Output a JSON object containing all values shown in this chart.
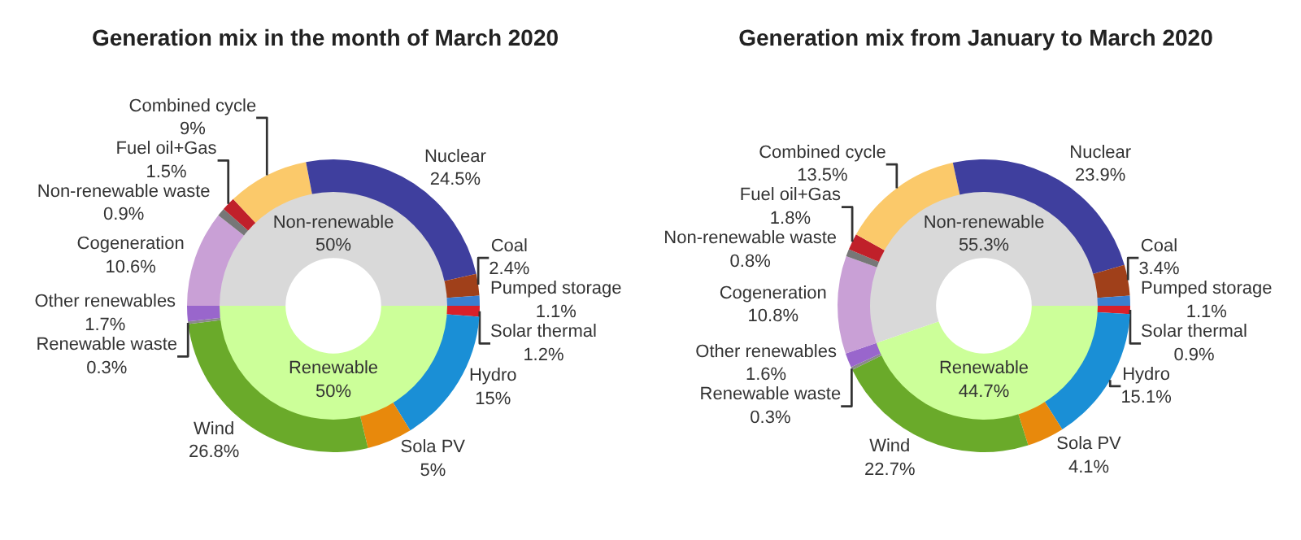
{
  "chart_data": [
    {
      "type": "donut",
      "title": "Generation mix in the month of March 2020",
      "categories": [
        "Solar thermal",
        "Hydro",
        "Sola PV",
        "Wind",
        "Renewable waste",
        "Other renewables",
        "Cogeneration",
        "Non-renewable waste",
        "Fuel oil+Gas",
        "Combined cycle",
        "Nuclear",
        "Coal",
        "Pumped storage"
      ],
      "values": [
        1.2,
        15,
        5,
        26.8,
        0.3,
        1.7,
        10.6,
        0.9,
        1.5,
        9,
        24.5,
        2.4,
        1.1
      ],
      "value_labels": [
        "1.2%",
        "15%",
        "5%",
        "26.8%",
        "0.3%",
        "1.7%",
        "10.6%",
        "0.9%",
        "1.5%",
        "9%",
        "24.5%",
        "2.4%",
        "1.1%"
      ],
      "colors": [
        "#d9202a",
        "#1a8fd6",
        "#e8890c",
        "#6aaa2a",
        "#8a8a8a",
        "#9966cc",
        "#c9a0d6",
        "#777777",
        "#c0202a",
        "#fbc96a",
        "#3f3f9e",
        "#a0401a",
        "#3a7fd0"
      ]
    },
    {
      "type": "donut",
      "categories": [
        "Renewable",
        "Non-renewable"
      ],
      "values": [
        50,
        50
      ],
      "value_labels": [
        "50%",
        "50%"
      ],
      "colors": [
        "#ccff99",
        "#d9d9d9"
      ]
    },
    {
      "type": "donut",
      "title": "Generation mix from January to March 2020",
      "categories": [
        "Solar thermal",
        "Hydro",
        "Sola PV",
        "Wind",
        "Renewable waste",
        "Other renewables",
        "Cogeneration",
        "Non-renewable waste",
        "Fuel oil+Gas",
        "Combined cycle",
        "Nuclear",
        "Coal",
        "Pumped storage"
      ],
      "values": [
        0.9,
        15.1,
        4.1,
        22.7,
        0.3,
        1.6,
        10.8,
        0.8,
        1.8,
        13.5,
        23.9,
        3.4,
        1.1
      ],
      "value_labels": [
        "0.9%",
        "15.1%",
        "4.1%",
        "22.7%",
        "0.3%",
        "1.6%",
        "10.8%",
        "0.8%",
        "1.8%",
        "13.5%",
        "23.9%",
        "3.4%",
        "1.1%"
      ],
      "colors": [
        "#d9202a",
        "#1a8fd6",
        "#e8890c",
        "#6aaa2a",
        "#8a8a8a",
        "#9966cc",
        "#c9a0d6",
        "#777777",
        "#c0202a",
        "#fbc96a",
        "#3f3f9e",
        "#a0401a",
        "#3a7fd0"
      ]
    },
    {
      "type": "donut",
      "categories": [
        "Renewable",
        "Non-renewable"
      ],
      "values": [
        44.7,
        55.3
      ],
      "value_labels": [
        "44.7%",
        "55.3%"
      ],
      "colors": [
        "#ccff99",
        "#d9d9d9"
      ]
    }
  ]
}
